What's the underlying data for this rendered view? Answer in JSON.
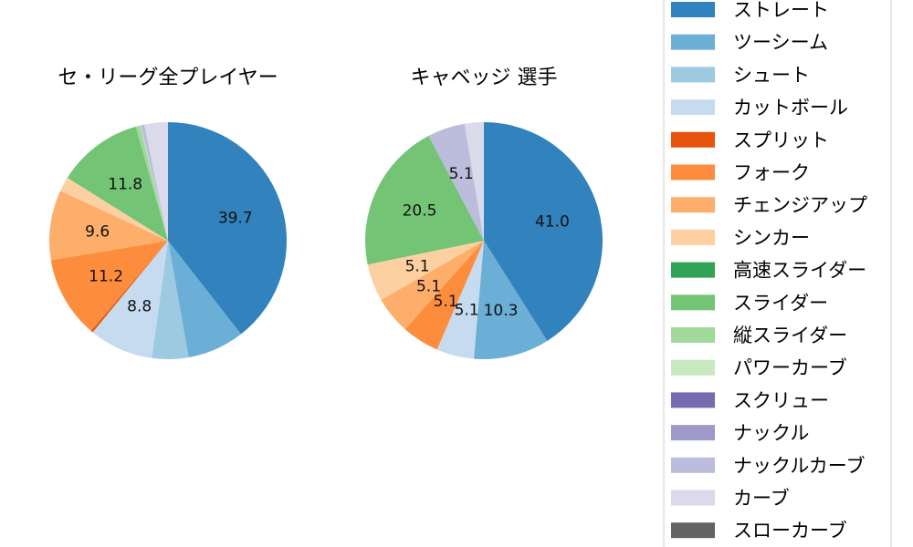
{
  "chart_data": [
    {
      "type": "pie",
      "title": "セ・リーグ全プレイヤー",
      "slices": [
        {
          "label": "ストレート",
          "value": 39.7,
          "color": "#3182bd",
          "text": "39.7"
        },
        {
          "label": "ツーシーム",
          "value": 7.8,
          "color": "#6baed6",
          "text": ""
        },
        {
          "label": "シュート",
          "value": 5.0,
          "color": "#9ecae1",
          "text": ""
        },
        {
          "label": "カットボール",
          "value": 8.8,
          "color": "#c6dbef",
          "text": "8.8"
        },
        {
          "label": "スプリット",
          "value": 0.3,
          "color": "#e6550d",
          "text": ""
        },
        {
          "label": "フォーク",
          "value": 11.2,
          "color": "#fd8d3c",
          "text": "11.2"
        },
        {
          "label": "チェンジアップ",
          "value": 9.6,
          "color": "#fdae6b",
          "text": "9.6"
        },
        {
          "label": "シンカー",
          "value": 2.0,
          "color": "#fdd0a2",
          "text": ""
        },
        {
          "label": "高速スライダー",
          "value": 0.0,
          "color": "#31a354",
          "text": ""
        },
        {
          "label": "スライダー",
          "value": 11.8,
          "color": "#74c476",
          "text": "11.8"
        },
        {
          "label": "縦スライダー",
          "value": 0.6,
          "color": "#a1d99b",
          "text": ""
        },
        {
          "label": "パワーカーブ",
          "value": 0.1,
          "color": "#c7e9c0",
          "text": ""
        },
        {
          "label": "スクリュー",
          "value": 0.0,
          "color": "#756bb1",
          "text": ""
        },
        {
          "label": "ナックル",
          "value": 0.0,
          "color": "#9e9ac8",
          "text": ""
        },
        {
          "label": "ナックルカーブ",
          "value": 0.5,
          "color": "#bcbddc",
          "text": ""
        },
        {
          "label": "カーブ",
          "value": 3.2,
          "color": "#dadaeb",
          "text": ""
        },
        {
          "label": "スローカーブ",
          "value": 0.0,
          "color": "#636363",
          "text": ""
        }
      ]
    },
    {
      "type": "pie",
      "title": "キャベッジ 選手",
      "slices": [
        {
          "label": "ストレート",
          "value": 41.0,
          "color": "#3182bd",
          "text": "41.0"
        },
        {
          "label": "ツーシーム",
          "value": 10.3,
          "color": "#6baed6",
          "text": "10.3"
        },
        {
          "label": "シュート",
          "value": 0,
          "color": "#9ecae1",
          "text": ""
        },
        {
          "label": "カットボール",
          "value": 5.1,
          "color": "#c6dbef",
          "text": "5.1"
        },
        {
          "label": "スプリット",
          "value": 0,
          "color": "#e6550d",
          "text": ""
        },
        {
          "label": "フォーク",
          "value": 5.1,
          "color": "#fd8d3c",
          "text": "5.1"
        },
        {
          "label": "チェンジアップ",
          "value": 5.1,
          "color": "#fdae6b",
          "text": "5.1"
        },
        {
          "label": "シンカー",
          "value": 5.1,
          "color": "#fdd0a2",
          "text": "5.1"
        },
        {
          "label": "高速スライダー",
          "value": 0,
          "color": "#31a354",
          "text": ""
        },
        {
          "label": "スライダー",
          "value": 20.5,
          "color": "#74c476",
          "text": "20.5"
        },
        {
          "label": "縦スライダー",
          "value": 0,
          "color": "#a1d99b",
          "text": ""
        },
        {
          "label": "パワーカーブ",
          "value": 0,
          "color": "#c7e9c0",
          "text": ""
        },
        {
          "label": "スクリュー",
          "value": 0,
          "color": "#756bb1",
          "text": ""
        },
        {
          "label": "ナックル",
          "value": 0,
          "color": "#9e9ac8",
          "text": ""
        },
        {
          "label": "ナックルカーブ",
          "value": 5.1,
          "color": "#bcbddc",
          "text": "5.1"
        },
        {
          "label": "カーブ",
          "value": 2.6,
          "color": "#dadaeb",
          "text": ""
        },
        {
          "label": "スローカーブ",
          "value": 0,
          "color": "#636363",
          "text": ""
        }
      ]
    }
  ],
  "legend": {
    "placement": "right",
    "items": [
      {
        "label": "ストレート",
        "color": "#3182bd"
      },
      {
        "label": "ツーシーム",
        "color": "#6baed6"
      },
      {
        "label": "シュート",
        "color": "#9ecae1"
      },
      {
        "label": "カットボール",
        "color": "#c6dbef"
      },
      {
        "label": "スプリット",
        "color": "#e6550d"
      },
      {
        "label": "フォーク",
        "color": "#fd8d3c"
      },
      {
        "label": "チェンジアップ",
        "color": "#fdae6b"
      },
      {
        "label": "シンカー",
        "color": "#fdd0a2"
      },
      {
        "label": "高速スライダー",
        "color": "#31a354"
      },
      {
        "label": "スライダー",
        "color": "#74c476"
      },
      {
        "label": "縦スライダー",
        "color": "#a1d99b"
      },
      {
        "label": "パワーカーブ",
        "color": "#c7e9c0"
      },
      {
        "label": "スクリュー",
        "color": "#756bb1"
      },
      {
        "label": "ナックル",
        "color": "#9e9ac8"
      },
      {
        "label": "ナックルカーブ",
        "color": "#bcbddc"
      },
      {
        "label": "カーブ",
        "color": "#dadaeb"
      },
      {
        "label": "スローカーブ",
        "color": "#636363"
      }
    ]
  }
}
